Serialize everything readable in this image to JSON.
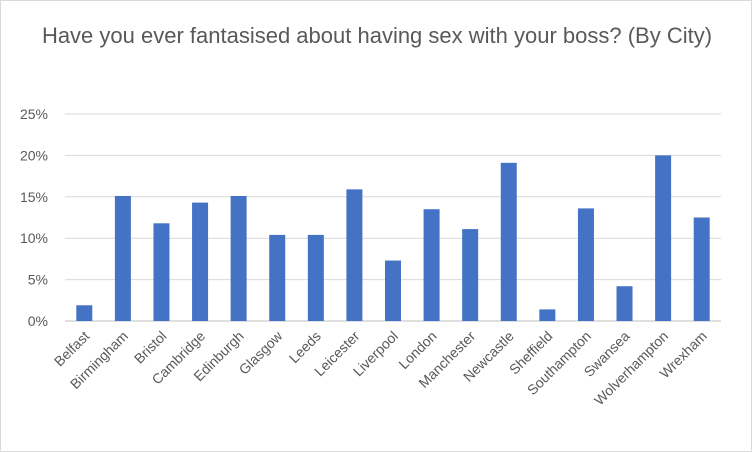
{
  "chart_data": {
    "type": "bar",
    "title": "Have you ever fantasised about having sex with your boss? (By City)",
    "xlabel": "",
    "ylabel": "",
    "categories": [
      "Belfast",
      "Birmingham",
      "Bristol",
      "Cambridge",
      "Edinburgh",
      "Glasgow",
      "Leeds",
      "Leicester",
      "Liverpool",
      "London",
      "Manchester",
      "Newcastle",
      "Sheffield",
      "Southampton",
      "Swansea",
      "Wolverhampton",
      "Wrexham"
    ],
    "values": [
      1.9,
      15.1,
      11.8,
      14.3,
      15.1,
      10.4,
      10.4,
      15.9,
      7.3,
      13.5,
      11.1,
      19.1,
      1.4,
      13.6,
      4.2,
      20.0,
      12.5
    ],
    "ylim": [
      0,
      25
    ],
    "yticks": [
      "0%",
      "5%",
      "10%",
      "15%",
      "20%",
      "25%"
    ],
    "grid": true,
    "legend": "none",
    "bar_color": "#4472c4"
  }
}
